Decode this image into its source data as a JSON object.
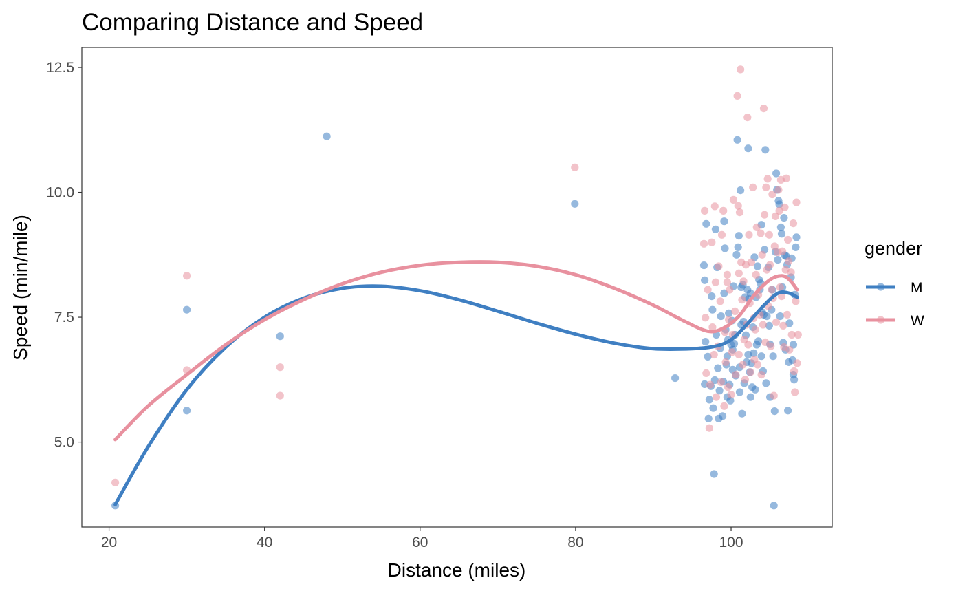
{
  "chart_data": {
    "type": "scatter",
    "title": "Comparing Distance and Speed",
    "xlabel": "Distance (miles)",
    "ylabel": "Speed (min/mile)",
    "xlim": [
      16.5,
      113
    ],
    "ylim": [
      3.3,
      12.9
    ],
    "x_ticks": [
      20,
      40,
      60,
      80,
      100
    ],
    "x_tick_labels": [
      "20",
      "40",
      "60",
      "80",
      "100"
    ],
    "y_ticks": [
      5.0,
      7.5,
      10.0,
      12.5
    ],
    "y_tick_labels": [
      "5.0",
      "7.5",
      "10.0",
      "12.5"
    ],
    "grid": false,
    "legend": {
      "title": "gender",
      "placement": "right"
    },
    "series": [
      {
        "name": "M",
        "color": "#3f7fc2",
        "points": [
          [
            20.8,
            3.73
          ],
          [
            30.0,
            7.65
          ],
          [
            30.0,
            5.63
          ],
          [
            42.0,
            7.12
          ],
          [
            48.0,
            11.12
          ],
          [
            79.9,
            9.77
          ],
          [
            92.8,
            6.28
          ],
          [
            96.5,
            8.54
          ],
          [
            96.6,
            8.24
          ],
          [
            96.8,
            9.37
          ],
          [
            96.7,
            7.01
          ],
          [
            96.6,
            6.16
          ],
          [
            97.2,
            5.85
          ],
          [
            97.0,
            6.71
          ],
          [
            97.1,
            5.47
          ],
          [
            97.4,
            6.12
          ],
          [
            97.5,
            7.92
          ],
          [
            97.6,
            7.65
          ],
          [
            97.7,
            5.68
          ],
          [
            97.8,
            4.36
          ],
          [
            97.9,
            6.24
          ],
          [
            98.0,
            9.26
          ],
          [
            98.2,
            8.5
          ],
          [
            98.1,
            7.15
          ],
          [
            98.3,
            6.48
          ],
          [
            98.4,
            5.47
          ],
          [
            98.5,
            6.03
          ],
          [
            98.6,
            6.88
          ],
          [
            98.7,
            7.52
          ],
          [
            98.9,
            5.52
          ],
          [
            99.0,
            6.21
          ],
          [
            99.1,
            7.98
          ],
          [
            99.1,
            9.42
          ],
          [
            99.2,
            8.88
          ],
          [
            99.3,
            7.25
          ],
          [
            99.5,
            5.9
          ],
          [
            99.5,
            6.72
          ],
          [
            99.6,
            7.05
          ],
          [
            99.7,
            7.58
          ],
          [
            99.8,
            6.15
          ],
          [
            99.9,
            5.83
          ],
          [
            100.0,
            6.95
          ],
          [
            100.1,
            7.43
          ],
          [
            100.2,
            6.45
          ],
          [
            100.3,
            8.12
          ],
          [
            100.4,
            6.97
          ],
          [
            100.5,
            7.15
          ],
          [
            100.6,
            6.33
          ],
          [
            100.7,
            8.75
          ],
          [
            100.8,
            11.05
          ],
          [
            100.9,
            8.9
          ],
          [
            101.0,
            9.13
          ],
          [
            101.1,
            6.5
          ],
          [
            101.1,
            6.0
          ],
          [
            101.2,
            10.04
          ],
          [
            101.3,
            7.35
          ],
          [
            101.4,
            5.57
          ],
          [
            101.5,
            8.15
          ],
          [
            101.6,
            7.41
          ],
          [
            101.7,
            6.18
          ],
          [
            101.8,
            7.9
          ],
          [
            101.9,
            7.14
          ],
          [
            102.0,
            6.6
          ],
          [
            102.1,
            8.05
          ],
          [
            102.2,
            10.88
          ],
          [
            102.2,
            6.75
          ],
          [
            102.3,
            7.87
          ],
          [
            102.4,
            6.4
          ],
          [
            102.5,
            7.98
          ],
          [
            102.6,
            6.58
          ],
          [
            102.7,
            6.1
          ],
          [
            102.8,
            7.3
          ],
          [
            102.9,
            6.78
          ],
          [
            103.0,
            8.7
          ],
          [
            103.1,
            6.05
          ],
          [
            103.2,
            7.9
          ],
          [
            103.3,
            6.95
          ],
          [
            103.4,
            8.52
          ],
          [
            103.5,
            7.02
          ],
          [
            103.6,
            8.25
          ],
          [
            103.7,
            8.05
          ],
          [
            103.8,
            8.18
          ],
          [
            103.9,
            6.72
          ],
          [
            104.0,
            7.6
          ],
          [
            104.1,
            6.42
          ],
          [
            104.2,
            7.55
          ],
          [
            104.3,
            8.85
          ],
          [
            104.4,
            10.85
          ],
          [
            104.5,
            6.18
          ],
          [
            104.6,
            7.52
          ],
          [
            104.8,
            8.5
          ],
          [
            104.9,
            7.33
          ],
          [
            105.0,
            6.96
          ],
          [
            105.0,
            5.9
          ],
          [
            105.2,
            7.65
          ],
          [
            105.3,
            8.05
          ],
          [
            105.4,
            6.72
          ],
          [
            105.5,
            3.73
          ],
          [
            105.6,
            5.62
          ],
          [
            105.7,
            8.81
          ],
          [
            105.8,
            10.38
          ],
          [
            105.9,
            10.05
          ],
          [
            106.0,
            8.65
          ],
          [
            106.1,
            9.83
          ],
          [
            106.2,
            9.76
          ],
          [
            106.3,
            7.52
          ],
          [
            106.4,
            9.3
          ],
          [
            106.5,
            9.17
          ],
          [
            106.6,
            8.1
          ],
          [
            106.7,
            6.99
          ],
          [
            106.8,
            9.49
          ],
          [
            106.9,
            8.74
          ],
          [
            107.0,
            6.85
          ],
          [
            107.1,
            8.72
          ],
          [
            107.2,
            8.55
          ],
          [
            107.3,
            5.63
          ],
          [
            107.4,
            6.6
          ],
          [
            107.5,
            7.38
          ],
          [
            107.7,
            8.3
          ],
          [
            107.8,
            8.68
          ],
          [
            107.9,
            6.64
          ],
          [
            108.0,
            6.95
          ],
          [
            108.1,
            6.25
          ],
          [
            108.2,
            7.95
          ],
          [
            108.3,
            8.9
          ],
          [
            108.4,
            9.1
          ],
          [
            108.0,
            6.35
          ],
          [
            102.5,
            5.9
          ],
          [
            103.9,
            9.35
          ],
          [
            99.4,
            6.55
          ],
          [
            100.2,
            6.85
          ],
          [
            101.3,
            8.1
          ]
        ],
        "trend": [
          [
            20.8,
            3.75
          ],
          [
            25,
            4.9
          ],
          [
            30,
            6.05
          ],
          [
            35,
            6.9
          ],
          [
            40,
            7.5
          ],
          [
            45,
            7.88
          ],
          [
            50,
            8.08
          ],
          [
            55,
            8.12
          ],
          [
            60,
            8.03
          ],
          [
            65,
            7.85
          ],
          [
            70,
            7.62
          ],
          [
            75,
            7.38
          ],
          [
            80,
            7.16
          ],
          [
            85,
            6.98
          ],
          [
            90,
            6.87
          ],
          [
            95,
            6.87
          ],
          [
            98,
            6.92
          ],
          [
            100,
            7.05
          ],
          [
            102,
            7.35
          ],
          [
            104,
            7.7
          ],
          [
            106,
            7.98
          ],
          [
            107.5,
            7.98
          ],
          [
            108.5,
            7.9
          ]
        ]
      },
      {
        "name": "W",
        "color": "#e8919f",
        "points": [
          [
            20.8,
            4.19
          ],
          [
            30.0,
            8.33
          ],
          [
            30.0,
            6.44
          ],
          [
            42.0,
            5.93
          ],
          [
            42.0,
            6.5
          ],
          [
            79.9,
            10.5
          ],
          [
            96.5,
            8.97
          ],
          [
            96.6,
            9.63
          ],
          [
            96.7,
            7.49
          ],
          [
            96.8,
            6.38
          ],
          [
            97.0,
            8.05
          ],
          [
            97.2,
            5.28
          ],
          [
            97.3,
            6.15
          ],
          [
            97.5,
            9.0
          ],
          [
            97.6,
            7.3
          ],
          [
            97.8,
            6.75
          ],
          [
            97.9,
            9.72
          ],
          [
            98.0,
            8.2
          ],
          [
            98.1,
            5.9
          ],
          [
            98.3,
            6.92
          ],
          [
            98.4,
            8.52
          ],
          [
            98.6,
            7.82
          ],
          [
            98.7,
            6.2
          ],
          [
            98.8,
            9.15
          ],
          [
            99.0,
            9.63
          ],
          [
            99.1,
            5.72
          ],
          [
            99.2,
            7.2
          ],
          [
            99.3,
            6.6
          ],
          [
            99.5,
            8.35
          ],
          [
            99.6,
            6.1
          ],
          [
            99.7,
            7.45
          ],
          [
            99.8,
            8.05
          ],
          [
            100.0,
            5.95
          ],
          [
            100.1,
            6.8
          ],
          [
            100.2,
            7.15
          ],
          [
            100.3,
            9.85
          ],
          [
            100.5,
            7.62
          ],
          [
            100.6,
            6.35
          ],
          [
            100.8,
            11.93
          ],
          [
            100.9,
            9.73
          ],
          [
            101.0,
            8.38
          ],
          [
            101.1,
            9.6
          ],
          [
            101.2,
            12.46
          ],
          [
            101.3,
            8.6
          ],
          [
            101.4,
            7.85
          ],
          [
            101.5,
            6.55
          ],
          [
            101.6,
            8.22
          ],
          [
            101.7,
            7.05
          ],
          [
            101.8,
            6.25
          ],
          [
            101.9,
            8.55
          ],
          [
            102.0,
            7.35
          ],
          [
            102.1,
            11.5
          ],
          [
            102.2,
            6.95
          ],
          [
            102.3,
            9.15
          ],
          [
            102.4,
            7.78
          ],
          [
            102.5,
            6.4
          ],
          [
            102.6,
            8.6
          ],
          [
            102.8,
            10.1
          ],
          [
            102.9,
            7.48
          ],
          [
            103.0,
            6.65
          ],
          [
            103.1,
            7.25
          ],
          [
            103.2,
            8.35
          ],
          [
            103.3,
            9.3
          ],
          [
            103.4,
            6.55
          ],
          [
            103.5,
            7.95
          ],
          [
            103.7,
            7.55
          ],
          [
            103.8,
            9.18
          ],
          [
            103.9,
            6.35
          ],
          [
            104.0,
            8.75
          ],
          [
            104.1,
            7.35
          ],
          [
            104.2,
            11.68
          ],
          [
            104.3,
            9.55
          ],
          [
            104.4,
            7.0
          ],
          [
            104.5,
            10.1
          ],
          [
            104.6,
            8.45
          ],
          [
            104.7,
            10.27
          ],
          [
            104.8,
            7.72
          ],
          [
            104.9,
            9.15
          ],
          [
            105.0,
            8.55
          ],
          [
            105.1,
            6.92
          ],
          [
            105.2,
            8.05
          ],
          [
            105.3,
            9.96
          ],
          [
            105.4,
            7.88
          ],
          [
            105.5,
            5.93
          ],
          [
            105.6,
            8.92
          ],
          [
            105.7,
            9.52
          ],
          [
            105.8,
            7.4
          ],
          [
            106.0,
            8.8
          ],
          [
            106.1,
            10.05
          ],
          [
            106.2,
            9.63
          ],
          [
            106.3,
            8.1
          ],
          [
            106.4,
            10.25
          ],
          [
            106.5,
            7.92
          ],
          [
            106.6,
            8.82
          ],
          [
            106.7,
            7.33
          ],
          [
            106.8,
            6.9
          ],
          [
            106.9,
            9.7
          ],
          [
            107.0,
            8.45
          ],
          [
            107.1,
            10.28
          ],
          [
            107.2,
            7.55
          ],
          [
            107.3,
            9.05
          ],
          [
            107.4,
            8.62
          ],
          [
            107.5,
            6.85
          ],
          [
            107.7,
            8.4
          ],
          [
            107.8,
            7.15
          ],
          [
            108.0,
            9.38
          ],
          [
            108.1,
            6.42
          ],
          [
            108.2,
            6.0
          ],
          [
            108.3,
            7.82
          ],
          [
            108.4,
            9.8
          ],
          [
            108.5,
            6.58
          ],
          [
            108.6,
            7.15
          ],
          [
            99.5,
            8.2
          ],
          [
            101.0,
            6.75
          ]
        ],
        "trend": [
          [
            20.8,
            5.05
          ],
          [
            25,
            5.72
          ],
          [
            30,
            6.35
          ],
          [
            35,
            6.95
          ],
          [
            40,
            7.45
          ],
          [
            45,
            7.85
          ],
          [
            50,
            8.17
          ],
          [
            55,
            8.4
          ],
          [
            60,
            8.54
          ],
          [
            65,
            8.6
          ],
          [
            70,
            8.6
          ],
          [
            75,
            8.52
          ],
          [
            80,
            8.35
          ],
          [
            85,
            8.08
          ],
          [
            90,
            7.74
          ],
          [
            94,
            7.42
          ],
          [
            97,
            7.22
          ],
          [
            99,
            7.28
          ],
          [
            101,
            7.52
          ],
          [
            103,
            7.95
          ],
          [
            105,
            8.25
          ],
          [
            106.5,
            8.33
          ],
          [
            107.5,
            8.25
          ],
          [
            108.5,
            8.05
          ]
        ]
      }
    ]
  }
}
